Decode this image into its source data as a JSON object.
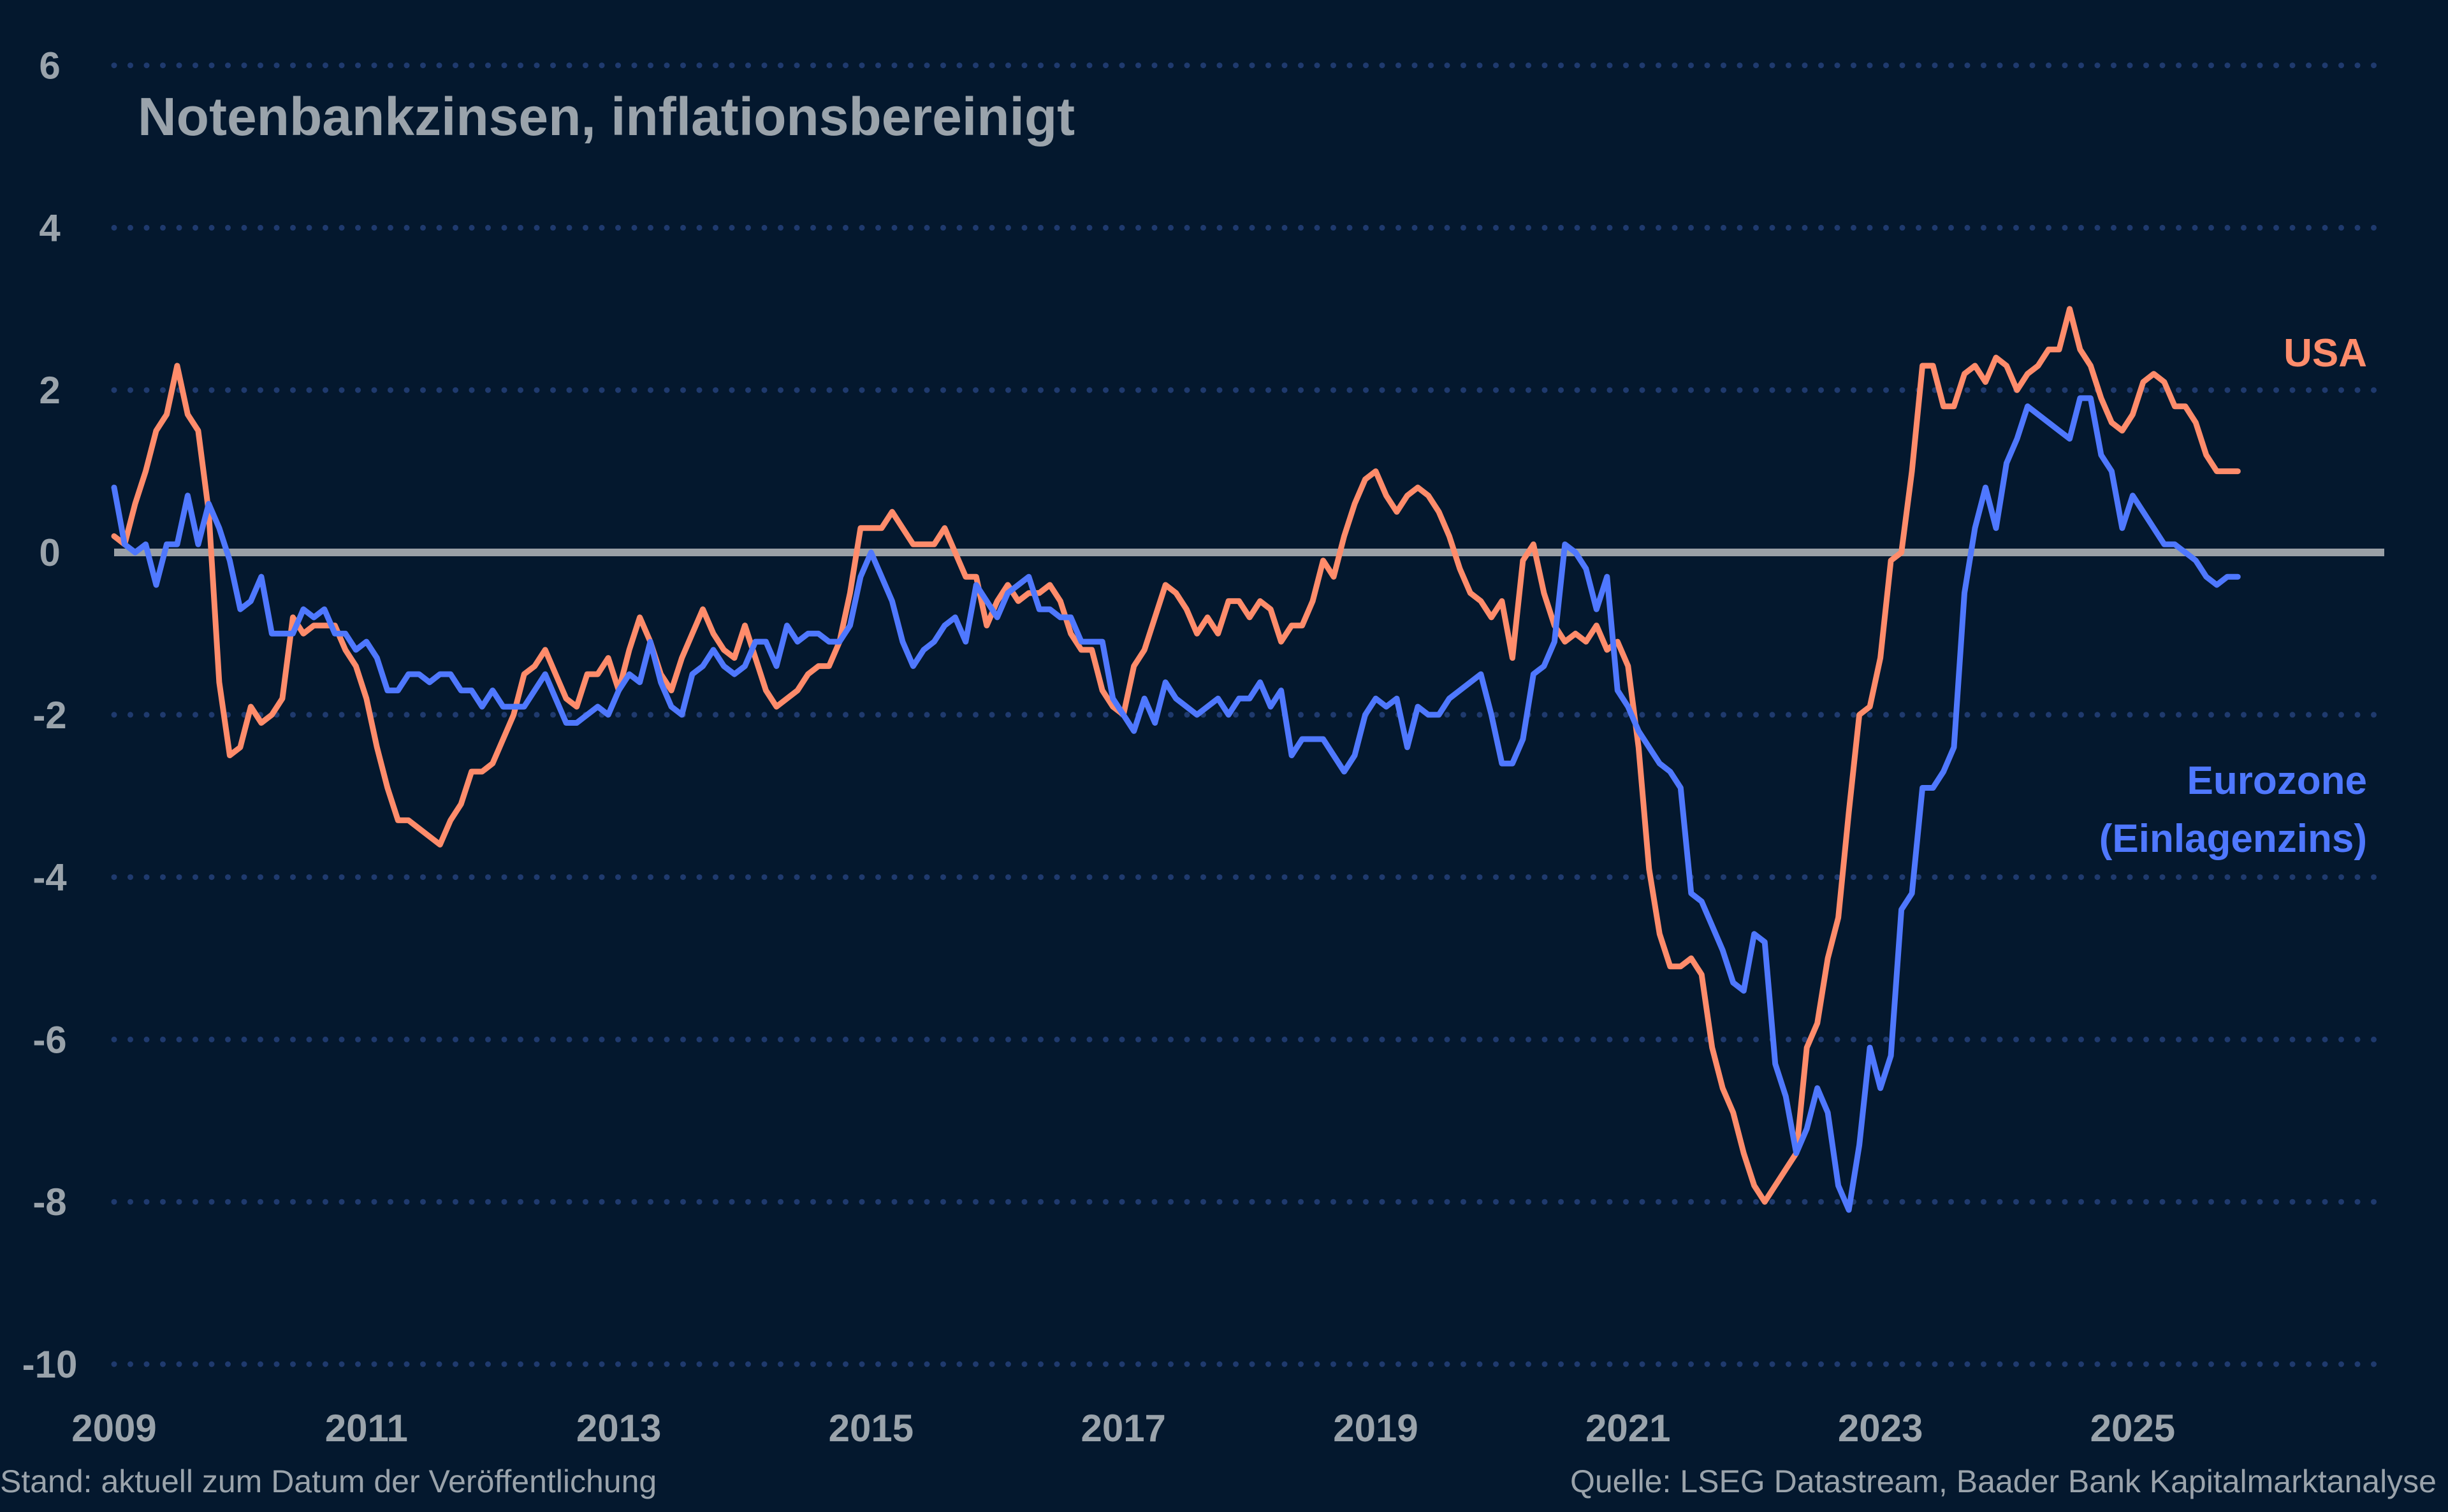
{
  "chart_data": {
    "type": "line",
    "title": "Notenbankzinsen, inflationsbereinigt",
    "xlabel": "",
    "ylabel": "",
    "ylim": [
      -10,
      6
    ],
    "yticks": [
      "6",
      "4",
      "2",
      "0",
      "-2",
      "-4",
      "-6",
      "-8",
      "-10"
    ],
    "xticks": [
      "2009",
      "2011",
      "2013",
      "2015",
      "2017",
      "2019",
      "2021",
      "2023",
      "2025"
    ],
    "xlim": [
      2009,
      2027
    ],
    "grid": "horizontal dotted",
    "zero_line": true,
    "frequency": "monthly",
    "series": [
      {
        "name": "USA",
        "color": "#ff8c6b",
        "values_by_year": {
          "2009": [
            0.2,
            0.1,
            0.6,
            1.0,
            1.5,
            1.7,
            2.3,
            1.7,
            1.5,
            0.5,
            -1.6,
            -2.5
          ],
          "2010": [
            -2.4,
            -1.9,
            -2.1,
            -2.0,
            -1.8,
            -0.8,
            -1.0,
            -0.9,
            -0.9,
            -0.9,
            -1.2,
            -1.4
          ],
          "2011": [
            -1.8,
            -2.4,
            -2.9,
            -3.3,
            -3.3,
            -3.4,
            -3.5,
            -3.6,
            -3.3,
            -3.1,
            -2.7,
            -2.7
          ],
          "2012": [
            -2.6,
            -2.3,
            -2.0,
            -1.5,
            -1.4,
            -1.2,
            -1.5,
            -1.8,
            -1.9,
            -1.5,
            -1.5,
            -1.3
          ],
          "2013": [
            -1.7,
            -1.2,
            -0.8,
            -1.1,
            -1.5,
            -1.7,
            -1.3,
            -1.0,
            -0.7,
            -1.0,
            -1.2,
            -1.3
          ],
          "2014": [
            -0.9,
            -1.3,
            -1.7,
            -1.9,
            -1.8,
            -1.7,
            -1.5,
            -1.4,
            -1.4,
            -1.1,
            -0.5,
            0.3
          ],
          "2015": [
            0.3,
            0.3,
            0.5,
            0.3,
            0.1,
            0.1,
            0.1,
            0.3,
            0.0,
            -0.3,
            -0.3,
            -0.9
          ],
          "2016": [
            -0.6,
            -0.4,
            -0.6,
            -0.5,
            -0.5,
            -0.4,
            -0.6,
            -1.0,
            -1.2,
            -1.2,
            -1.7,
            -1.9
          ],
          "2017": [
            -2.0,
            -1.4,
            -1.2,
            -0.8,
            -0.4,
            -0.5,
            -0.7,
            -1.0,
            -0.8,
            -1.0,
            -0.6,
            -0.6
          ],
          "2018": [
            -0.8,
            -0.6,
            -0.7,
            -1.1,
            -0.9,
            -0.9,
            -0.6,
            -0.1,
            -0.3,
            0.2,
            0.6,
            0.9
          ],
          "2019": [
            1.0,
            0.7,
            0.5,
            0.7,
            0.8,
            0.7,
            0.5,
            0.2,
            -0.2,
            -0.5,
            -0.6,
            -0.8
          ],
          "2020": [
            -0.6,
            -1.3,
            -0.1,
            0.1,
            -0.5,
            -0.9,
            -1.1,
            -1.0,
            -1.1,
            -0.9,
            -1.2,
            -1.1
          ],
          "2021": [
            -1.4,
            -2.4,
            -3.9,
            -4.7,
            -5.1,
            -5.1,
            -5.0,
            -5.2,
            -6.1,
            -6.6,
            -6.9,
            -7.4
          ],
          "2022": [
            -7.8,
            -8.0,
            -7.8,
            -7.6,
            -7.4,
            -6.1,
            -5.8,
            -5.0,
            -4.5,
            -3.2,
            -2.0,
            -1.9
          ],
          "2023": [
            -1.3,
            -0.1,
            0.0,
            1.0,
            2.3,
            2.3,
            1.8,
            1.8,
            2.2,
            2.3,
            2.1,
            2.4
          ],
          "2024": [
            2.3,
            2.0,
            2.2,
            2.3,
            2.5,
            2.5,
            3.0,
            2.5,
            2.3,
            1.9,
            1.6,
            1.5
          ],
          "2025": [
            1.7,
            2.1,
            2.2,
            2.1,
            1.8,
            1.8,
            1.6,
            1.2,
            1.0,
            1.0,
            1.0
          ]
        }
      },
      {
        "name": "Eurozone (Einlagenzins)",
        "name_lines": [
          "Eurozone",
          "(Einlagenzins)"
        ],
        "color": "#4f78ff",
        "values_by_year": {
          "2009": [
            0.8,
            0.1,
            0.0,
            0.1,
            -0.4,
            0.1,
            0.1,
            0.7,
            0.1,
            0.6,
            0.3,
            -0.1
          ],
          "2010": [
            -0.7,
            -0.6,
            -0.3,
            -1.0,
            -1.0,
            -1.0,
            -0.7,
            -0.8,
            -0.7,
            -1.0,
            -1.0,
            -1.2
          ],
          "2011": [
            -1.1,
            -1.3,
            -1.7,
            -1.7,
            -1.5,
            -1.5,
            -1.6,
            -1.5,
            -1.5,
            -1.7,
            -1.7,
            -1.9
          ],
          "2012": [
            -1.7,
            -1.9,
            -1.9,
            -1.9,
            -1.7,
            -1.5,
            -1.8,
            -2.1,
            -2.1,
            -2.0,
            -1.9,
            -2.0
          ],
          "2013": [
            -1.7,
            -1.5,
            -1.6,
            -1.1,
            -1.6,
            -1.9,
            -2.0,
            -1.5,
            -1.4,
            -1.2,
            -1.4,
            -1.5
          ],
          "2014": [
            -1.4,
            -1.1,
            -1.1,
            -1.4,
            -0.9,
            -1.1,
            -1.0,
            -1.0,
            -1.1,
            -1.1,
            -0.9,
            -0.3
          ],
          "2015": [
            0.0,
            -0.3,
            -0.6,
            -1.1,
            -1.4,
            -1.2,
            -1.1,
            -0.9,
            -0.8,
            -1.1,
            -0.4,
            -0.6
          ],
          "2016": [
            -0.8,
            -0.5,
            -0.4,
            -0.3,
            -0.7,
            -0.7,
            -0.8,
            -0.8,
            -1.1,
            -1.1,
            -1.1,
            -1.8
          ],
          "2017": [
            -2.0,
            -2.2,
            -1.8,
            -2.1,
            -1.6,
            -1.8,
            -1.9,
            -2.0,
            -1.9,
            -1.8,
            -2.0,
            -1.8
          ],
          "2018": [
            -1.8,
            -1.6,
            -1.9,
            -1.7,
            -2.5,
            -2.3,
            -2.3,
            -2.3,
            -2.5,
            -2.7,
            -2.5,
            -2.0
          ],
          "2019": [
            -1.8,
            -1.9,
            -1.8,
            -2.4,
            -1.9,
            -2.0,
            -2.0,
            -1.8,
            -1.7,
            -1.6,
            -1.5,
            -2.0
          ],
          "2020": [
            -2.6,
            -2.6,
            -2.3,
            -1.5,
            -1.4,
            -1.1,
            0.1,
            0.0,
            -0.2,
            -0.7,
            -0.3,
            -1.7
          ],
          "2021": [
            -1.9,
            -2.2,
            -2.4,
            -2.6,
            -2.7,
            -2.9,
            -4.2,
            -4.3,
            -4.6,
            -4.9,
            -5.3,
            -5.4
          ],
          "2022": [
            -4.7,
            -4.8,
            -6.3,
            -6.7,
            -7.4,
            -7.1,
            -6.6,
            -6.9,
            -7.8,
            -8.1,
            -7.3,
            -6.1
          ],
          "2023": [
            -6.6,
            -6.2,
            -4.4,
            -4.2,
            -2.9,
            -2.9,
            -2.7,
            -2.4,
            -0.5,
            0.3,
            0.8,
            0.3
          ],
          "2024": [
            1.1,
            1.4,
            1.8,
            1.7,
            1.6,
            1.5,
            1.4,
            1.9,
            1.9,
            1.2,
            1.0,
            0.3
          ],
          "2025": [
            0.7,
            0.5,
            0.3,
            0.1,
            0.1,
            0.0,
            -0.1,
            -0.3,
            -0.4,
            -0.3,
            -0.3
          ]
        }
      }
    ],
    "colors": {
      "background": "#04182e",
      "grid": "#1f3a6e",
      "zero_line": "#9aa0a6",
      "text": "#9aa3ab"
    }
  },
  "footer": {
    "left": "Stand: aktuell zum Datum der Veröffentlichung",
    "right": "Quelle: LSEG Datastream, Baader Bank Kapitalmarktanalyse"
  }
}
